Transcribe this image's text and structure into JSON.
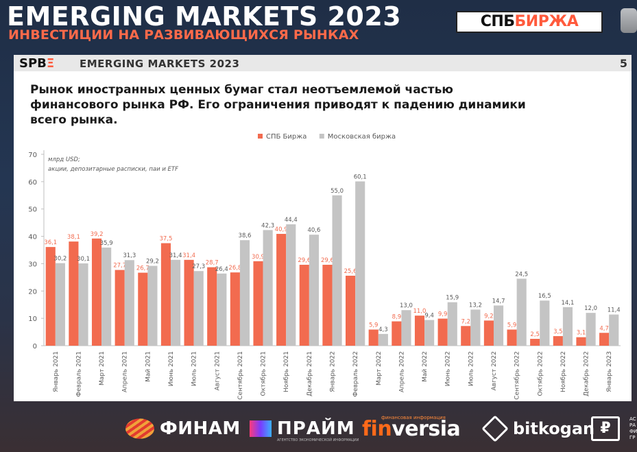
{
  "header": {
    "title": "EMERGING MARKETS 2023",
    "subtitle": "ИНВЕСТИЦИИ НА РАЗВИВАЮЩИХСЯ РЫНКАХ",
    "logo_main": "СПБ",
    "logo_accent": "БИРЖА"
  },
  "slide": {
    "logo_main": "SPB",
    "logo_accent": "Ξ",
    "bar_title": "EMERGING MARKETS 2023",
    "page_number": "5",
    "headline_lines": [
      "Рынок иностранных ценных бумаг стал неотъемлемой частью",
      "финансового рынка РФ. Его ограничения приводят к падению динамики",
      "всего рынка."
    ]
  },
  "chart_data": {
    "type": "bar",
    "title": "",
    "annotation_lines": [
      "млрд USD;",
      "акции, депозитарные расписки, паи и ETF"
    ],
    "ylim": [
      0,
      70
    ],
    "yticks": [
      0,
      10,
      20,
      30,
      40,
      50,
      60,
      70
    ],
    "legend_position": "top-center",
    "categories": [
      "Январь 2021",
      "Февраль 2021",
      "Март 2021",
      "Апрель 2021",
      "Май 2021",
      "Июнь 2021",
      "Июль 2021",
      "Август 2021",
      "Сентябрь 2021",
      "Октябрь 2021",
      "Ноябрь 2021",
      "Декабрь 2021",
      "Январь 2022",
      "Февраль 2022",
      "Март 2022",
      "Апрель 2022",
      "Май 2022",
      "Июнь 2022",
      "Июль 2022",
      "Август 2022",
      "Сентябрь 2022",
      "Октябрь 2022",
      "Ноябрь 2022",
      "Декабрь 2022",
      "Январь 2023"
    ],
    "series": [
      {
        "name": "СПБ Биржа",
        "color": "#f26b4f",
        "values": [
          36.1,
          38.1,
          39.2,
          27.7,
          26.7,
          37.5,
          31.4,
          28.7,
          26.8,
          30.9,
          40.9,
          29.6,
          29.6,
          25.6,
          5.9,
          8.9,
          11.0,
          9.9,
          7.2,
          9.2,
          5.9,
          2.5,
          3.5,
          3.1,
          4.7
        ],
        "labels": [
          "36,1",
          "38,1",
          "39,2",
          "27,7",
          "26,7",
          "37,5",
          "31,4",
          "28,7",
          "26,8",
          "30,9",
          "40,9",
          "29,6",
          "29,6",
          "25,6",
          "5,9",
          "8,9",
          "11,0",
          "9,9",
          "7,2",
          "9,2",
          "5,9",
          "2,5",
          "3,5",
          "3,1",
          "4,7"
        ]
      },
      {
        "name": "Московская биржа",
        "color": "#c4c4c4",
        "values": [
          30.2,
          30.1,
          35.9,
          31.3,
          29.2,
          31.4,
          27.3,
          26.4,
          38.6,
          42.3,
          44.4,
          40.6,
          55.0,
          60.1,
          4.3,
          13.0,
          9.4,
          15.9,
          13.2,
          14.7,
          24.5,
          16.5,
          14.1,
          12.0,
          11.4
        ],
        "labels": [
          "30,2",
          "30,1",
          "35,9",
          "31,3",
          "29,2",
          "31,4",
          "27,3",
          "26,4",
          "38,6",
          "42,3",
          "44,4",
          "40,6",
          "55,0",
          "60,1",
          "4,3",
          "13,0",
          "9,4",
          "15,9",
          "13,2",
          "14,7",
          "24,5",
          "16,5",
          "14,1",
          "12,0",
          "11,4"
        ]
      }
    ]
  },
  "footer": {
    "finam": "ФИНАМ",
    "praym": "ПРАЙМ",
    "praym_small": "АГЕНТСТВО ЭКОНОМИЧЕСКОЙ ИНФОРМАЦИИ",
    "finversia_fin": "fin",
    "finversia_rest": "versia",
    "finversia_small": "финансовая информация",
    "bitkogan": "bitkogan",
    "last_symbol": "₽",
    "last_small": "АС РА ФИ ГР"
  }
}
